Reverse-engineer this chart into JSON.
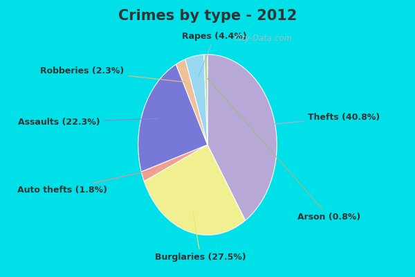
{
  "title": "Crimes by type - 2012",
  "title_fontsize": 15,
  "title_fontweight": "bold",
  "title_color": "#333333",
  "labels": [
    "Thefts",
    "Burglaries",
    "Auto thefts",
    "Assaults",
    "Robberies",
    "Rapes",
    "Arson"
  ],
  "display_labels": [
    "Thefts (40.8%)",
    "Burglaries (27.5%)",
    "Auto thefts (1.8%)",
    "Assaults (22.3%)",
    "Robberies (2.3%)",
    "Rapes (4.4%)",
    "Arson (0.8%)"
  ],
  "values": [
    40.8,
    27.5,
    1.8,
    22.3,
    2.3,
    4.4,
    0.8
  ],
  "colors": [
    "#b8a8d8",
    "#f0f090",
    "#f0a090",
    "#7878d8",
    "#f0c098",
    "#98d8f0",
    "#c0d8a0"
  ],
  "background_cyan": "#00e0e8",
  "background_main": "#c8e8d0",
  "label_fontsize": 9,
  "label_color": "#333333",
  "watermark": "City-Data.com",
  "startangle": 90,
  "title_bar_height": 0.115,
  "bottom_bar_height": 0.05
}
